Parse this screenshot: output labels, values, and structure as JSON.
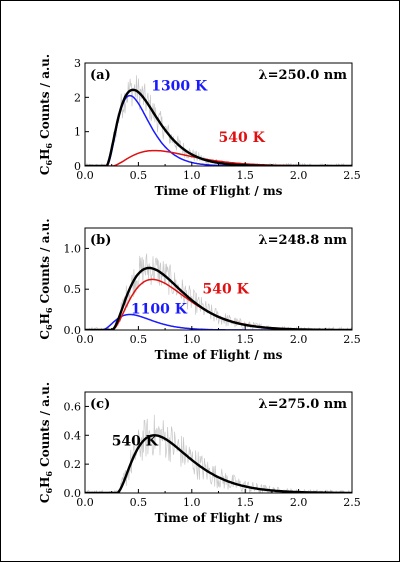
{
  "ylabel_main": "C",
  "ylabel_sub": "6",
  "ylabel_mid": "H",
  "ylabel_sub2": "6",
  "ylabel_rest": " Counts / a.u.",
  "colors": {
    "black": "#000000",
    "blue": "#1a1aff",
    "red": "#e01010",
    "noise": "#c8c8c8"
  },
  "chart_data": [
    {
      "type": "line",
      "panel_label": "(a)",
      "wavelength_label": "λ=250.0 nm",
      "xlabel": "Time of Flight / ms",
      "xlim": [
        0,
        2.5
      ],
      "ylim": [
        0,
        3
      ],
      "xticks": [
        "0.0",
        "0.5",
        "1.0",
        "1.5",
        "2.0",
        "2.5"
      ],
      "yticks": [
        "0",
        "1",
        "2",
        "3"
      ],
      "series": [
        {
          "name": "1300 K",
          "color": "#1a1aff",
          "t0": 0.2,
          "peak_x": 0.42,
          "peak_y": 2.05,
          "shape": 0.45,
          "label_x": 0.62,
          "label_y": 2.2
        },
        {
          "name": "540 K",
          "color": "#e01010",
          "t0": 0.25,
          "peak_x": 0.65,
          "peak_y": 0.45,
          "shape": 0.5,
          "label_x": 1.25,
          "label_y": 0.7
        },
        {
          "name": "",
          "color": "#000000",
          "t0": 0.2,
          "peak_x": 0.45,
          "peak_y": 2.22,
          "shape": 0.55
        }
      ],
      "noise_amp": 0.5
    },
    {
      "type": "line",
      "panel_label": "(b)",
      "wavelength_label": "λ=248.8 nm",
      "xlabel": "Time of Flight / ms",
      "xlim": [
        0,
        2.5
      ],
      "ylim": [
        0,
        1.25
      ],
      "xticks": [
        "0.0",
        "0.5",
        "1.0",
        "1.5",
        "2.0",
        "2.5"
      ],
      "yticks": [
        "0.0",
        "0.5",
        "1.0"
      ],
      "ytick_values": [
        0,
        0.5,
        1.0
      ],
      "series": [
        {
          "name": "1100 K",
          "color": "#1a1aff",
          "t0": 0.15,
          "peak_x": 0.42,
          "peak_y": 0.19,
          "shape": 0.4,
          "label_x": 0.43,
          "label_y": 0.2
        },
        {
          "name": "540 K",
          "color": "#e01010",
          "t0": 0.25,
          "peak_x": 0.63,
          "peak_y": 0.62,
          "shape": 0.5,
          "label_x": 1.1,
          "label_y": 0.45
        },
        {
          "name": "",
          "color": "#000000",
          "t0": 0.25,
          "peak_x": 0.6,
          "peak_y": 0.76,
          "shape": 0.52
        }
      ],
      "noise_amp": 0.22
    },
    {
      "type": "line",
      "panel_label": "(c)",
      "wavelength_label": "λ=275.0 nm",
      "xlabel": "Time of Flight / ms",
      "xlim": [
        0,
        2.5
      ],
      "ylim": [
        0,
        0.7
      ],
      "xticks": [
        "0.0",
        "0.5",
        "1.0",
        "1.5",
        "2.0",
        "2.5"
      ],
      "yticks": [
        "0.0",
        "0.2",
        "0.4",
        "0.6"
      ],
      "ytick_values": [
        0,
        0.2,
        0.4,
        0.6
      ],
      "series": [
        {
          "name": "540 K",
          "color": "#000000",
          "t0": 0.3,
          "peak_x": 0.65,
          "peak_y": 0.4,
          "shape": 0.55,
          "label_x": 0.25,
          "label_y": 0.33
        }
      ],
      "noise_amp": 0.15
    }
  ]
}
